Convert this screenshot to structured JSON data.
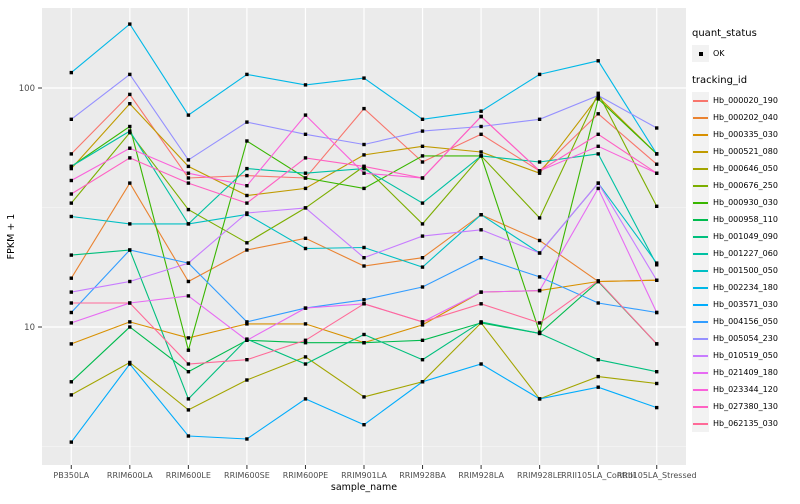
{
  "figure": {
    "background": "#ffffff",
    "panel_background": "#EBEBEB",
    "gridline_color": "#FFFFFF",
    "tick_label_color": "#4D4D4D",
    "point_color": "#000000"
  },
  "legend": {
    "quant_status_title": "quant_status",
    "quant_status_items": [
      "OK"
    ],
    "tracking_id_title": "tracking_id"
  },
  "chart_data": {
    "type": "line",
    "title": "",
    "xlabel": "sample_name",
    "ylabel": "FPKM + 1",
    "y_scale": "log10",
    "y_tick_labels": [
      "100",
      "10"
    ],
    "y_ticks": [
      100,
      10
    ],
    "y_gridlines_major": [
      100,
      10
    ],
    "y_gridlines_minor": [
      31.62,
      3.162
    ],
    "ylim": [
      2.6,
      216
    ],
    "grid": true,
    "legend_position": "right",
    "x_categories": [
      "PB350LA",
      "RRIM600LA",
      "RRIM600LE",
      "RRIM600SE",
      "RRIM600PE",
      "RRIM901LA",
      "RRIM928BA",
      "RRIM928LA",
      "RRIM928LE",
      "RRII105LA_Control",
      "RRII105LA_Stressed"
    ],
    "series": [
      {
        "name": "Hb_000020_190",
        "color": "#F8766D",
        "values": [
          53,
          94,
          42,
          43,
          42,
          82,
          49,
          64,
          45,
          78,
          48
        ]
      },
      {
        "name": "Hb_000202_040",
        "color": "#EA8331",
        "values": [
          16,
          40,
          15.5,
          21,
          23.5,
          18,
          19.5,
          29.5,
          23,
          15.5,
          15.7
        ]
      },
      {
        "name": "Hb_000335_030",
        "color": "#D89000",
        "values": [
          8.5,
          10.5,
          9,
          10.3,
          10.3,
          8.6,
          10.2,
          14,
          14.2,
          15.5,
          15.7
        ]
      },
      {
        "name": "Hb_000521_080",
        "color": "#C09B00",
        "values": [
          46,
          86,
          47,
          35.5,
          38,
          52.5,
          57,
          54,
          44,
          92,
          53
        ]
      },
      {
        "name": "Hb_000646_050",
        "color": "#A3A500",
        "values": [
          5.2,
          7.1,
          4.5,
          6,
          7.5,
          5.1,
          5.9,
          10.4,
          5,
          6.2,
          5.8
        ]
      },
      {
        "name": "Hb_000676_250",
        "color": "#7CAE00",
        "values": [
          33,
          65,
          31,
          22.5,
          31.5,
          47,
          27,
          52,
          28.6,
          95,
          32
        ]
      },
      {
        "name": "Hb_000930_030",
        "color": "#39B600",
        "values": [
          47,
          69,
          8,
          60,
          42,
          38,
          52,
          52,
          9.5,
          90,
          53
        ]
      },
      {
        "name": "Hb_000958_110",
        "color": "#00BB4E",
        "values": [
          5.9,
          10,
          6.5,
          8.8,
          8.6,
          8.6,
          8.8,
          10.4,
          9.4,
          15.5,
          8.5
        ]
      },
      {
        "name": "Hb_001049_090",
        "color": "#00BF7D",
        "values": [
          20,
          21,
          5,
          8.9,
          7,
          9.3,
          7.3,
          10.5,
          9.4,
          7.3,
          6.5
        ]
      },
      {
        "name": "Hb_001227_060",
        "color": "#00C1A3",
        "values": [
          47,
          66,
          27,
          46,
          44,
          46,
          33,
          52,
          49,
          53,
          18.2
        ]
      },
      {
        "name": "Hb_001500_050",
        "color": "#00BFC4",
        "values": [
          29,
          27,
          27,
          29.6,
          21.3,
          21.5,
          17.8,
          29.5,
          20.4,
          40,
          18.5
        ]
      },
      {
        "name": "Hb_002234_180",
        "color": "#00B8E7",
        "values": [
          116,
          185,
          77,
          114,
          103,
          110,
          74,
          80,
          114,
          130,
          53
        ]
      },
      {
        "name": "Hb_003571_030",
        "color": "#00ACFC",
        "values": [
          3.3,
          7,
          3.5,
          3.4,
          5,
          3.9,
          5.9,
          7,
          5,
          5.6,
          4.6
        ]
      },
      {
        "name": "Hb_004156_050",
        "color": "#329DFF",
        "values": [
          11.5,
          21,
          18.5,
          10.5,
          12,
          13,
          14.7,
          19.5,
          16.2,
          12.6,
          11.5
        ]
      },
      {
        "name": "Hb_005054_230",
        "color": "#9590FF",
        "values": [
          74,
          114,
          50,
          72,
          64,
          58,
          66,
          69,
          74,
          93,
          68
        ]
      },
      {
        "name": "Hb_010519_050",
        "color": "#C77CFF",
        "values": [
          14,
          15.5,
          18.5,
          30,
          31.5,
          19.5,
          24,
          25.5,
          20.4,
          40,
          15.7
        ]
      },
      {
        "name": "Hb_021409_180",
        "color": "#E76BF3",
        "values": [
          10.4,
          12.6,
          13.5,
          8.8,
          12,
          12.5,
          10.5,
          14,
          14.2,
          38,
          11.5
        ]
      },
      {
        "name": "Hb_023344_120",
        "color": "#FA62DB",
        "values": [
          41,
          56,
          44,
          39,
          77,
          44,
          42,
          76,
          45,
          57,
          44
        ]
      },
      {
        "name": "Hb_027380_130",
        "color": "#FF61C2",
        "values": [
          36,
          51,
          40,
          33,
          51,
          47,
          42,
          76,
          45,
          64,
          44
        ]
      },
      {
        "name": "Hb_062135_030",
        "color": "#FF6A98",
        "values": [
          12.6,
          12.6,
          7,
          7.3,
          8.8,
          12.5,
          10.5,
          12.5,
          10.4,
          15.6,
          8.5
        ]
      }
    ]
  }
}
